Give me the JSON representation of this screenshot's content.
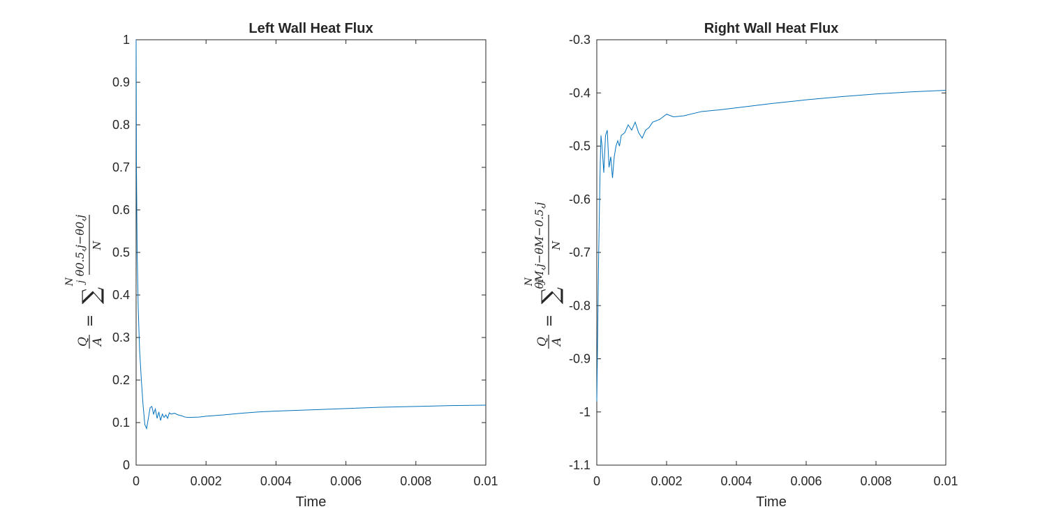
{
  "chart_data": [
    {
      "type": "line",
      "title": "Left Wall Heat Flux",
      "xlabel": "Time",
      "ylabel": "Q/A = Σ_j^N (θ_{0.5,j} − θ_{0,j}) / N",
      "ylabel_parts": {
        "q": "Q",
        "a": "A",
        "eq": "=",
        "sigma": "∑",
        "sub": "j",
        "sup": "N",
        "numerator": "θ0.5,j−θ0,j",
        "denominator": "N"
      },
      "xlim": [
        0,
        0.01
      ],
      "ylim": [
        0,
        1
      ],
      "xticks": [
        0,
        0.002,
        0.004,
        0.006,
        0.008,
        0.01
      ],
      "xtick_labels": [
        "0",
        "0.002",
        "0.004",
        "0.006",
        "0.008",
        "0.01"
      ],
      "yticks": [
        0,
        0.1,
        0.2,
        0.3,
        0.4,
        0.5,
        0.6,
        0.7,
        0.8,
        0.9,
        1
      ],
      "ytick_labels": [
        "0",
        "0.1",
        "0.2",
        "0.3",
        "0.4",
        "0.5",
        "0.6",
        "0.7",
        "0.8",
        "0.9",
        "1"
      ],
      "grid": false,
      "line_color": "#0072bd",
      "series": [
        {
          "x": [
            0,
            1e-05,
            3e-05,
            6e-05,
            0.0001,
            0.00015,
            0.0002,
            0.00025,
            0.0003,
            0.00035,
            0.0004,
            0.00045,
            0.0005,
            0.00055,
            0.0006,
            0.00065,
            0.0007,
            0.00075,
            0.0008,
            0.00085,
            0.0009,
            0.00095,
            0.001,
            0.0011,
            0.0012,
            0.0013,
            0.0014,
            0.0015,
            0.0018,
            0.002,
            0.0025,
            0.003,
            0.0035,
            0.004,
            0.005,
            0.006,
            0.007,
            0.008,
            0.009,
            0.01
          ],
          "y": [
            1.0,
            0.7,
            0.5,
            0.37,
            0.27,
            0.2,
            0.14,
            0.095,
            0.086,
            0.11,
            0.135,
            0.138,
            0.12,
            0.132,
            0.11,
            0.125,
            0.105,
            0.12,
            0.112,
            0.118,
            0.11,
            0.123,
            0.12,
            0.122,
            0.118,
            0.116,
            0.113,
            0.112,
            0.113,
            0.115,
            0.118,
            0.122,
            0.125,
            0.127,
            0.13,
            0.133,
            0.136,
            0.138,
            0.14,
            0.141
          ]
        }
      ]
    },
    {
      "type": "line",
      "title": "Right Wall Heat Flux",
      "xlabel": "Time",
      "ylabel": "Q/A = Σ_j^N (θ_{M,j} − θ_{M−0.5,j}) / N",
      "ylabel_parts": {
        "q": "Q",
        "a": "A",
        "eq": "=",
        "sigma": "∑",
        "sub": "j",
        "sup": "N",
        "numerator": "θM,j−θM−0.5,j",
        "denominator": "N"
      },
      "xlim": [
        0,
        0.01
      ],
      "ylim": [
        -1.1,
        -0.3
      ],
      "xticks": [
        0,
        0.002,
        0.004,
        0.006,
        0.008,
        0.01
      ],
      "xtick_labels": [
        "0",
        "0.002",
        "0.004",
        "0.006",
        "0.008",
        "0.01"
      ],
      "yticks": [
        -1.1,
        -1,
        -0.9,
        -0.8,
        -0.7,
        -0.6,
        -0.5,
        -0.4,
        -0.3
      ],
      "ytick_labels": [
        "-1.1",
        "-1",
        "-0.9",
        "-0.8",
        "-0.7",
        "-0.6",
        "-0.5",
        "-0.4",
        "-0.3"
      ],
      "grid": false,
      "line_color": "#0072bd",
      "series": [
        {
          "x": [
            0,
            2e-05,
            5e-05,
            8e-05,
            0.0001,
            0.00012,
            0.00015,
            0.0002,
            0.00025,
            0.0003,
            0.00035,
            0.0004,
            0.00045,
            0.0005,
            0.00055,
            0.0006,
            0.00065,
            0.0007,
            0.0008,
            0.0009,
            0.001,
            0.0011,
            0.0012,
            0.0013,
            0.0014,
            0.0015,
            0.0016,
            0.0018,
            0.002,
            0.0022,
            0.0025,
            0.003,
            0.0035,
            0.004,
            0.005,
            0.006,
            0.007,
            0.008,
            0.009,
            0.01
          ],
          "y": [
            -0.98,
            -0.88,
            -0.72,
            -0.6,
            -0.53,
            -0.48,
            -0.5,
            -0.55,
            -0.48,
            -0.47,
            -0.54,
            -0.52,
            -0.56,
            -0.52,
            -0.5,
            -0.49,
            -0.5,
            -0.48,
            -0.475,
            -0.46,
            -0.47,
            -0.455,
            -0.475,
            -0.485,
            -0.47,
            -0.465,
            -0.455,
            -0.45,
            -0.44,
            -0.445,
            -0.443,
            -0.435,
            -0.432,
            -0.428,
            -0.42,
            -0.413,
            -0.407,
            -0.402,
            -0.398,
            -0.395
          ]
        }
      ]
    }
  ]
}
